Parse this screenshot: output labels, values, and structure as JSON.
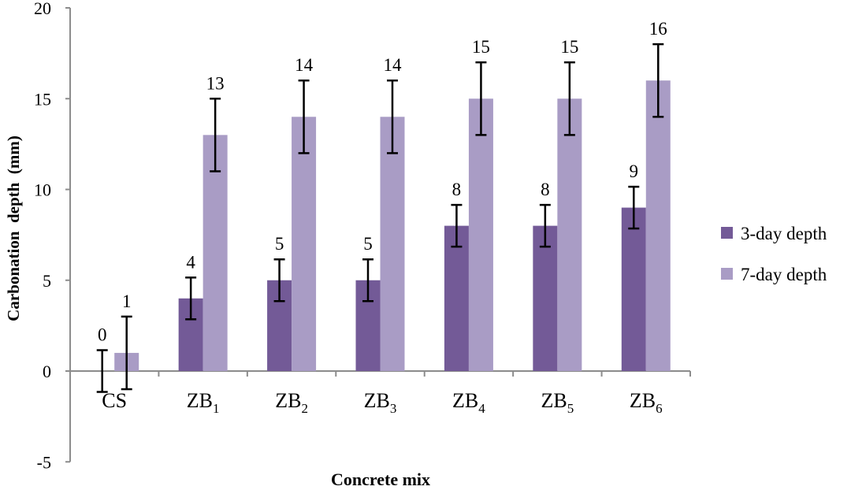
{
  "chart_data": {
    "type": "bar",
    "title": "",
    "xlabel": "Concrete mix",
    "ylabel": "Carbonation  depth  (mm)",
    "ylim": [
      -5,
      20
    ],
    "yticks": [
      -5,
      0,
      5,
      10,
      15,
      20
    ],
    "grid": false,
    "legend_position": "right",
    "categories": [
      {
        "base": "CS",
        "sub": ""
      },
      {
        "base": "ZB",
        "sub": "1"
      },
      {
        "base": "ZB",
        "sub": "2"
      },
      {
        "base": "ZB",
        "sub": "3"
      },
      {
        "base": "ZB",
        "sub": "4"
      },
      {
        "base": "ZB",
        "sub": "5"
      },
      {
        "base": "ZB",
        "sub": "6"
      }
    ],
    "series": [
      {
        "name": "3-day depth",
        "color": "#735a97",
        "values": [
          0,
          4,
          5,
          5,
          8,
          8,
          9
        ],
        "error": [
          1.15,
          1.15,
          1.15,
          1.15,
          1.15,
          1.15,
          1.15
        ]
      },
      {
        "name": "7-day depth",
        "color": "#a99cc5",
        "values": [
          1,
          13,
          14,
          14,
          15,
          15,
          16
        ],
        "error": [
          2,
          2,
          2,
          2,
          2,
          2,
          2
        ]
      }
    ]
  }
}
